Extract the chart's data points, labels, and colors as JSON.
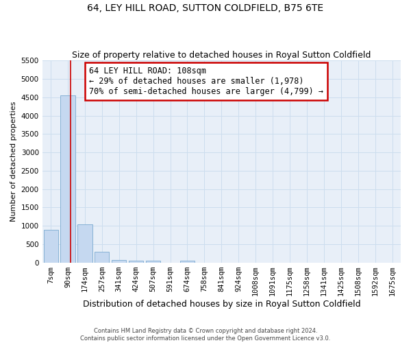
{
  "title": "64, LEY HILL ROAD, SUTTON COLDFIELD, B75 6TE",
  "subtitle": "Size of property relative to detached houses in Royal Sutton Coldfield",
  "xlabel": "Distribution of detached houses by size in Royal Sutton Coldfield",
  "ylabel": "Number of detached properties",
  "footer_line1": "Contains HM Land Registry data © Crown copyright and database right 2024.",
  "footer_line2": "Contains public sector information licensed under the Open Government Licence v3.0.",
  "bar_labels": [
    "7sqm",
    "90sqm",
    "174sqm",
    "257sqm",
    "341sqm",
    "424sqm",
    "507sqm",
    "591sqm",
    "674sqm",
    "758sqm",
    "841sqm",
    "924sqm",
    "1008sqm",
    "1091sqm",
    "1175sqm",
    "1258sqm",
    "1341sqm",
    "1425sqm",
    "1508sqm",
    "1592sqm",
    "1675sqm"
  ],
  "bar_values": [
    900,
    4550,
    1050,
    300,
    70,
    60,
    50,
    0,
    50,
    0,
    0,
    0,
    0,
    0,
    0,
    0,
    0,
    0,
    0,
    0,
    0
  ],
  "bar_color": "#c5d8f0",
  "bar_edgecolor": "#7aaad0",
  "grid_color": "#ccddee",
  "vline_x": 1.15,
  "vline_color": "#cc0000",
  "annotation_text": "64 LEY HILL ROAD: 108sqm\n← 29% of detached houses are smaller (1,978)\n70% of semi-detached houses are larger (4,799) →",
  "annotation_box_color": "#ffffff",
  "annotation_box_edgecolor": "#cc0000",
  "ylim": [
    0,
    5500
  ],
  "yticks": [
    0,
    500,
    1000,
    1500,
    2000,
    2500,
    3000,
    3500,
    4000,
    4500,
    5000,
    5500
  ],
  "background_color": "#e8eff8",
  "title_fontsize": 10,
  "subtitle_fontsize": 9,
  "tick_fontsize": 7.5,
  "ylabel_fontsize": 8,
  "xlabel_fontsize": 9
}
